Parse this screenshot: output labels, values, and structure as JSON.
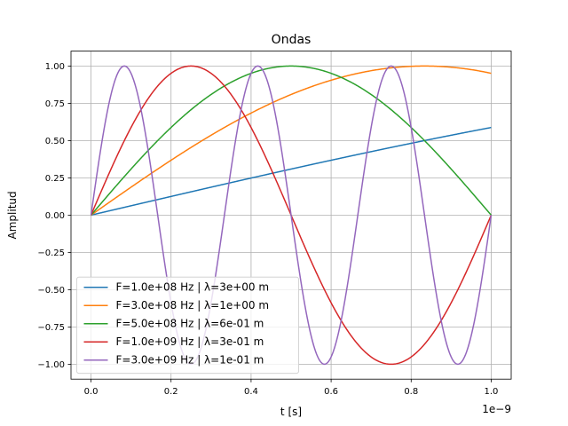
{
  "chart_data": {
    "type": "line",
    "title": "Ondas",
    "xlabel": "t [s]",
    "ylabel": "Amplitud",
    "x_offset_label": "1e−9",
    "xlim": [
      -5e-11,
      1.05e-09
    ],
    "ylim": [
      -1.1,
      1.1
    ],
    "xticks": [
      0,
      2e-10,
      4e-10,
      6e-10,
      8e-10,
      1e-09
    ],
    "xtick_labels": [
      "0.0",
      "0.2",
      "0.4",
      "0.6",
      "0.8",
      "1.0"
    ],
    "yticks": [
      -1.0,
      -0.75,
      -0.5,
      -0.25,
      0.0,
      0.25,
      0.5,
      0.75,
      1.0
    ],
    "ytick_labels": [
      "−1.00",
      "−0.75",
      "−0.50",
      "−0.25",
      "0.00",
      "0.25",
      "0.50",
      "0.75",
      "1.00"
    ],
    "grid": true,
    "legend_position": "lower-left",
    "function": "sin(2*pi*F*t)",
    "t_range": [
      0,
      1e-09
    ],
    "series": [
      {
        "name": "F=1.0e+08 Hz | λ=3e+00 m",
        "frequency": 100000000.0,
        "color": "#1f77b4"
      },
      {
        "name": "F=3.0e+08 Hz | λ=1e+00 m",
        "frequency": 300000000.0,
        "color": "#ff7f0e"
      },
      {
        "name": "F=5.0e+08 Hz | λ=6e-01 m",
        "frequency": 500000000.0,
        "color": "#2ca02c"
      },
      {
        "name": "F=1.0e+09 Hz | λ=3e-01 m",
        "frequency": 1000000000.0,
        "color": "#d62728"
      },
      {
        "name": "F=3.0e+09 Hz | λ=1e-01 m",
        "frequency": 3000000000.0,
        "color": "#9467bd"
      }
    ]
  }
}
